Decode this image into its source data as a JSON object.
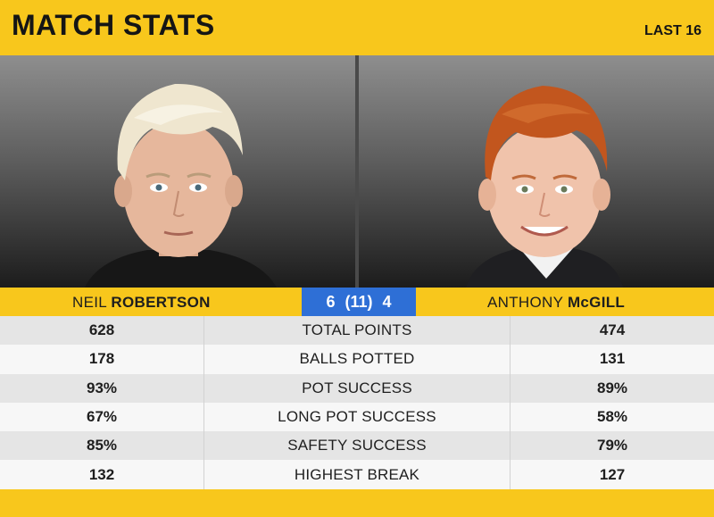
{
  "header": {
    "title": "MATCH STATS",
    "round": "LAST 16"
  },
  "players": {
    "left": {
      "first": "NEIL",
      "last": "ROBERTSON"
    },
    "right": {
      "first": "ANTHONY",
      "last": "McGILL"
    }
  },
  "score": "6 (11) 4",
  "stats": [
    {
      "label": "TOTAL POINTS",
      "left": "628",
      "right": "474"
    },
    {
      "label": "BALLS POTTED",
      "left": "178",
      "right": "131"
    },
    {
      "label": "POT SUCCESS",
      "left": "93%",
      "right": "89%"
    },
    {
      "label": "LONG POT SUCCESS",
      "left": "67%",
      "right": "58%"
    },
    {
      "label": "SAFETY SUCCESS",
      "left": "85%",
      "right": "79%"
    },
    {
      "label": "HIGHEST BREAK",
      "left": "132",
      "right": "127"
    }
  ],
  "colors": {
    "accent": "#f8c71c",
    "score_bg": "#2e6fd6"
  }
}
